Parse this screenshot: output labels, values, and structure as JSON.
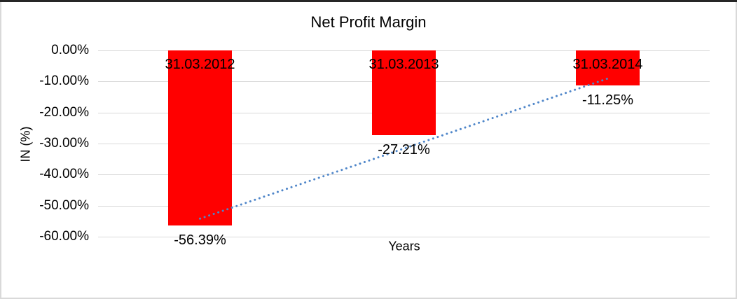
{
  "chart_data": {
    "type": "bar",
    "title": "Net Profit Margin",
    "xlabel": "Years",
    "ylabel": "IN (%)",
    "categories": [
      "31.03.2012",
      "31.03.2013",
      "31.03.2014"
    ],
    "values": [
      -56.39,
      -27.21,
      -11.25
    ],
    "value_labels": [
      "-56.39%",
      "-27.21%",
      "-11.25%"
    ],
    "ytick_values": [
      0,
      -10,
      -20,
      -30,
      -40,
      -50,
      -60
    ],
    "ytick_labels": [
      "0.00%",
      "-10.00%",
      "-20.00%",
      "-30.00%",
      "-40.00%",
      "-50.00%",
      "-60.00%"
    ],
    "ylim": [
      -60,
      0
    ],
    "grid": true,
    "legend": false,
    "bar_color": "#ff0000",
    "gridline_color": "#d9d9d9",
    "text_color": "#000000",
    "trendline": {
      "type": "linear",
      "style": "dotted",
      "color": "#4f86c9"
    }
  }
}
